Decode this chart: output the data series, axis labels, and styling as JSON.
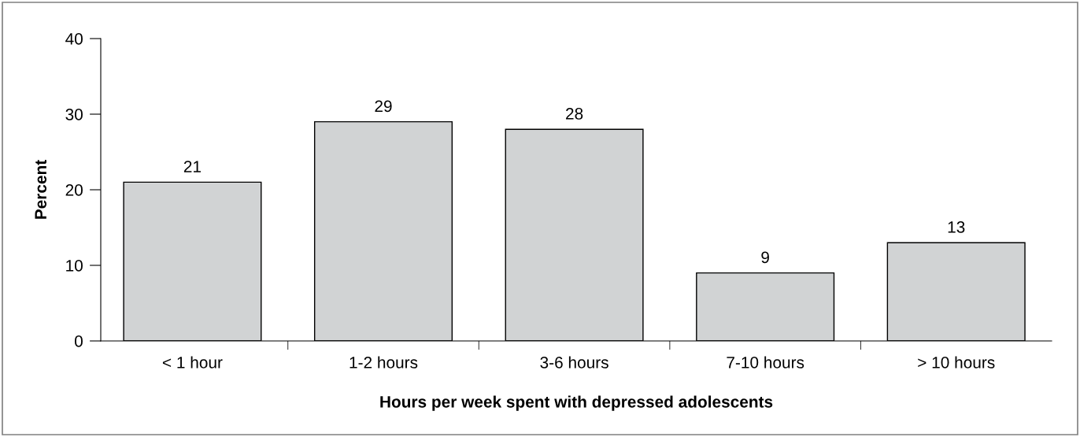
{
  "chart_data": {
    "type": "bar",
    "xlabel": "Hours per week spent with depressed adolescents",
    "ylabel": "Percent",
    "categories": [
      "< 1 hour",
      "1-2 hours",
      "3-6 hours",
      "7-10 hours",
      "> 10 hours"
    ],
    "values": [
      21,
      29,
      28,
      9,
      13
    ],
    "color": "#d1d3d4",
    "data_labels": true,
    "ylim": [
      0,
      40
    ],
    "yticks": [
      0,
      10,
      20,
      30,
      40
    ]
  }
}
